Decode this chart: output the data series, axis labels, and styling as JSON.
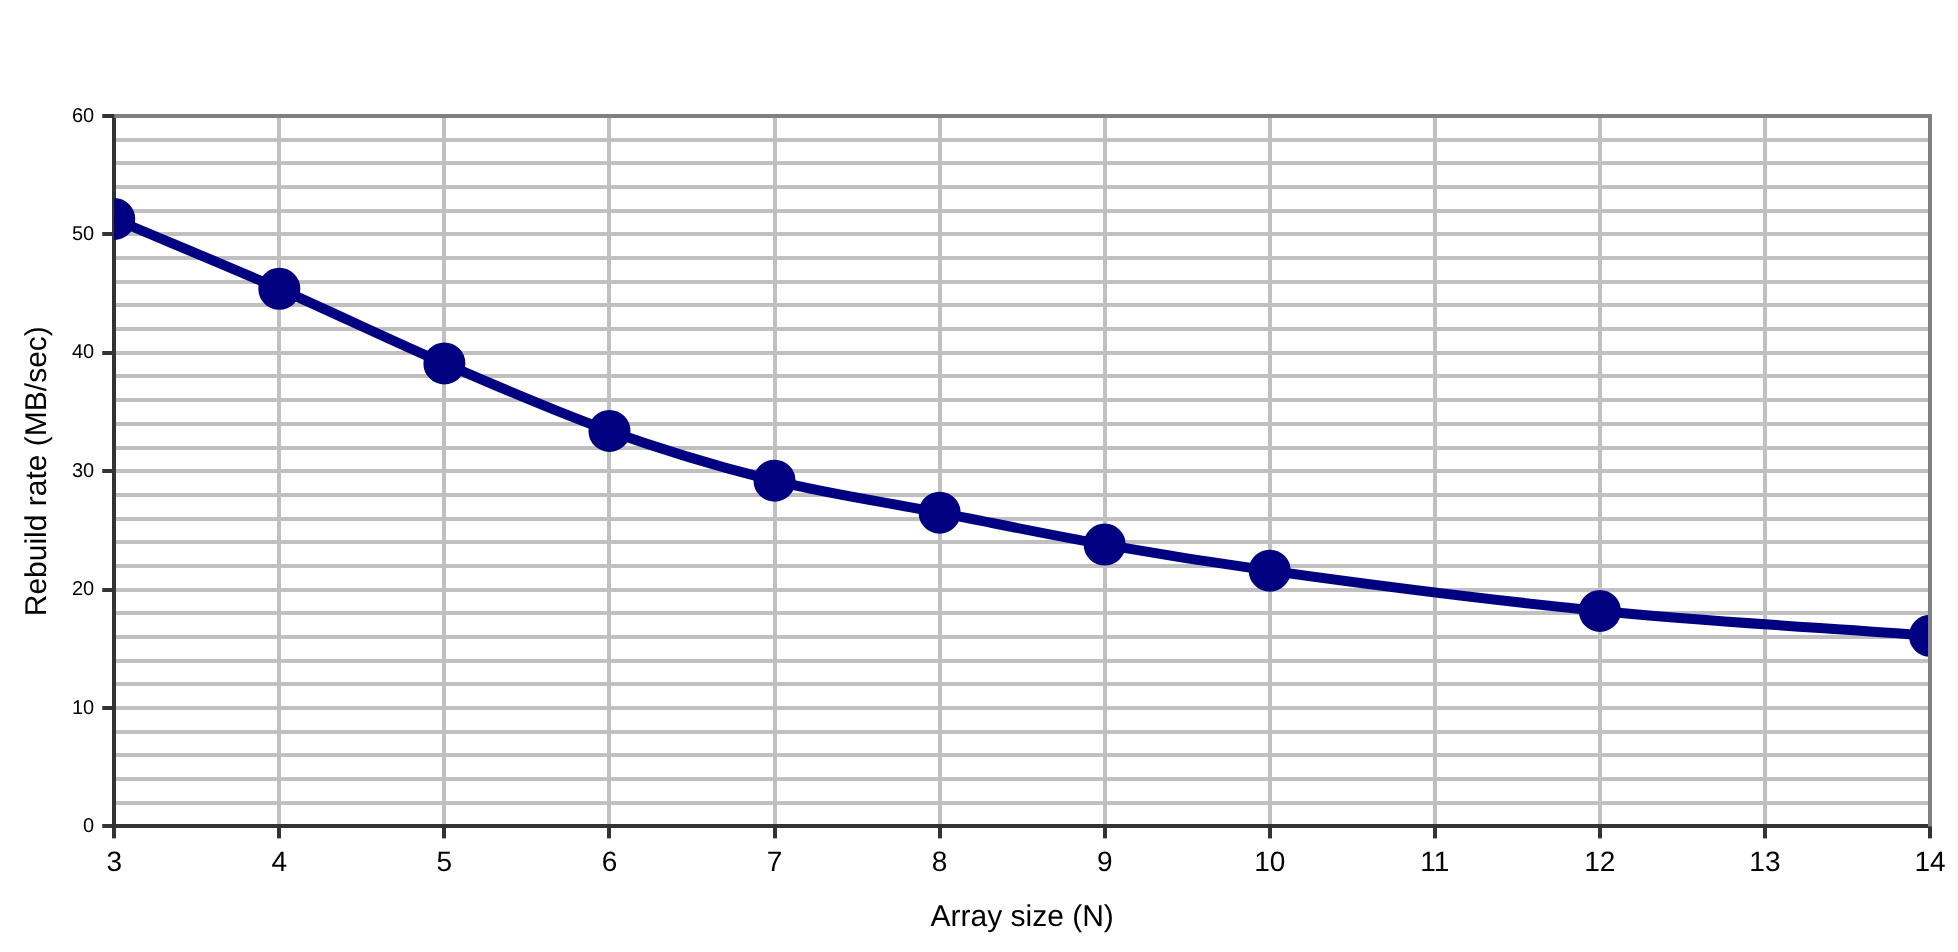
{
  "chart_data": {
    "type": "line",
    "xlabel": "Array size (N)",
    "ylabel": "Rebuild rate (MB/sec)",
    "x": [
      3,
      4,
      5,
      6,
      7,
      8,
      9,
      10,
      12,
      14
    ],
    "series": [
      {
        "color": "#000080",
        "values": [
          51.3,
          45.4,
          39.1,
          33.4,
          29.2,
          26.5,
          23.8,
          21.6,
          18.2,
          16.1
        ]
      }
    ],
    "xlim": [
      3,
      14
    ],
    "xticks": [
      3,
      4,
      5,
      6,
      7,
      8,
      9,
      10,
      11,
      12,
      13,
      14
    ],
    "ylim": [
      0,
      60
    ],
    "yticks": [
      0,
      {
        "value": 2,
        "label": null
      },
      {
        "value": 4,
        "label": null
      },
      {
        "value": 6,
        "label": null
      },
      {
        "value": 8,
        "label": null
      },
      10,
      {
        "value": 12,
        "label": null
      },
      {
        "value": 14,
        "label": null
      },
      {
        "value": 16,
        "label": null
      },
      {
        "value": 18,
        "label": null
      },
      20,
      {
        "value": 22,
        "label": null
      },
      {
        "value": 24,
        "label": null
      },
      {
        "value": 26,
        "label": null
      },
      {
        "value": 28,
        "label": null
      },
      30,
      {
        "value": 32,
        "label": null
      },
      {
        "value": 34,
        "label": null
      },
      {
        "value": 36,
        "label": null
      },
      {
        "value": 38,
        "label": null
      },
      40,
      {
        "value": 42,
        "label": null
      },
      {
        "value": 44,
        "label": null
      },
      {
        "value": 46,
        "label": null
      },
      {
        "value": 48,
        "label": null
      },
      50,
      {
        "value": 52,
        "label": null
      },
      {
        "value": 54,
        "label": null
      },
      {
        "value": 56,
        "label": null
      },
      {
        "value": 58,
        "label": null
      },
      60
    ],
    "grid": true,
    "legend": false,
    "marker": "circle",
    "line_style": "solid"
  }
}
